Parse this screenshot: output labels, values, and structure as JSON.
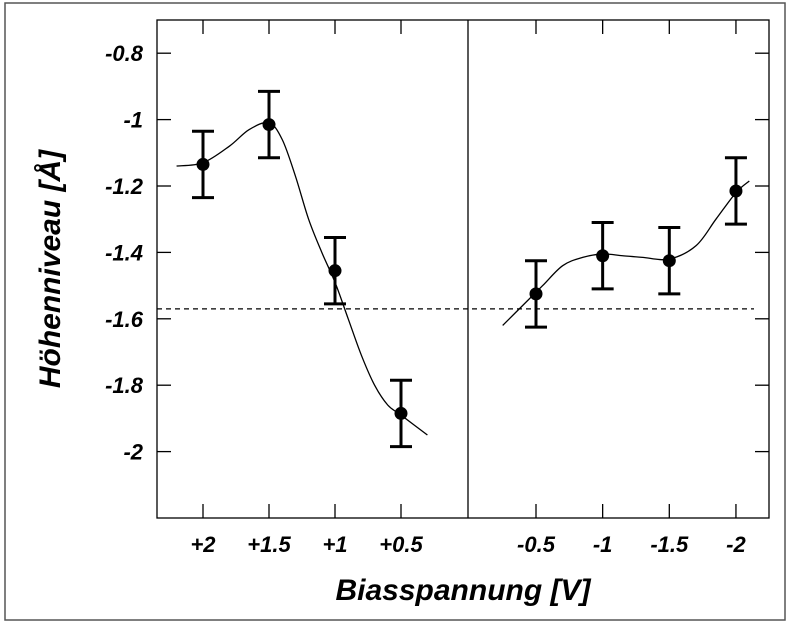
{
  "chart_data": {
    "type": "scatter",
    "title": "",
    "xlabel": "Biasspannung [V]",
    "ylabel": "Höhenniveau [Å]",
    "ylim": [
      -2.2,
      -0.7
    ],
    "y_ticks": [
      -0.8,
      -1,
      -1.2,
      -1.4,
      -1.6,
      -1.8,
      -2
    ],
    "y_tick_labels": [
      "-0.8",
      "-1",
      "-1.2",
      "-1.4",
      "-1.6",
      "-1.8",
      "-2"
    ],
    "grid": false,
    "legend": "none",
    "reference_line": {
      "y": -1.57,
      "style": "dashed"
    },
    "panels": [
      {
        "x": [
          "+2",
          "+1.5",
          "+1",
          "+0.5"
        ],
        "y": [
          -1.135,
          -1.015,
          -1.455,
          -1.885
        ],
        "error": [
          0.1,
          0.1,
          0.1,
          0.1
        ],
        "fit_curve": [
          [
            2.2,
            -1.14
          ],
          [
            2.0,
            -1.13
          ],
          [
            1.8,
            -1.08
          ],
          [
            1.65,
            -1.03
          ],
          [
            1.5,
            -1.01
          ],
          [
            1.4,
            -1.06
          ],
          [
            1.3,
            -1.17
          ],
          [
            1.2,
            -1.3
          ],
          [
            1.1,
            -1.4
          ],
          [
            1.0,
            -1.49
          ],
          [
            0.9,
            -1.6
          ],
          [
            0.8,
            -1.71
          ],
          [
            0.7,
            -1.8
          ],
          [
            0.6,
            -1.86
          ],
          [
            0.5,
            -1.89
          ],
          [
            0.3,
            -1.95
          ]
        ]
      },
      {
        "x": [
          "-0.5",
          "-1",
          "-1.5",
          "-2"
        ],
        "y": [
          -1.525,
          -1.41,
          -1.425,
          -1.215
        ],
        "error": [
          0.1,
          0.1,
          0.1,
          0.1
        ],
        "fit_curve": [
          [
            -0.25,
            -1.62
          ],
          [
            -0.4,
            -1.56
          ],
          [
            -0.55,
            -1.5
          ],
          [
            -0.7,
            -1.44
          ],
          [
            -0.85,
            -1.415
          ],
          [
            -1.0,
            -1.405
          ],
          [
            -1.15,
            -1.41
          ],
          [
            -1.3,
            -1.415
          ],
          [
            -1.5,
            -1.42
          ],
          [
            -1.7,
            -1.38
          ],
          [
            -1.85,
            -1.3
          ],
          [
            -2.0,
            -1.22
          ],
          [
            -2.1,
            -1.185
          ]
        ]
      }
    ]
  }
}
